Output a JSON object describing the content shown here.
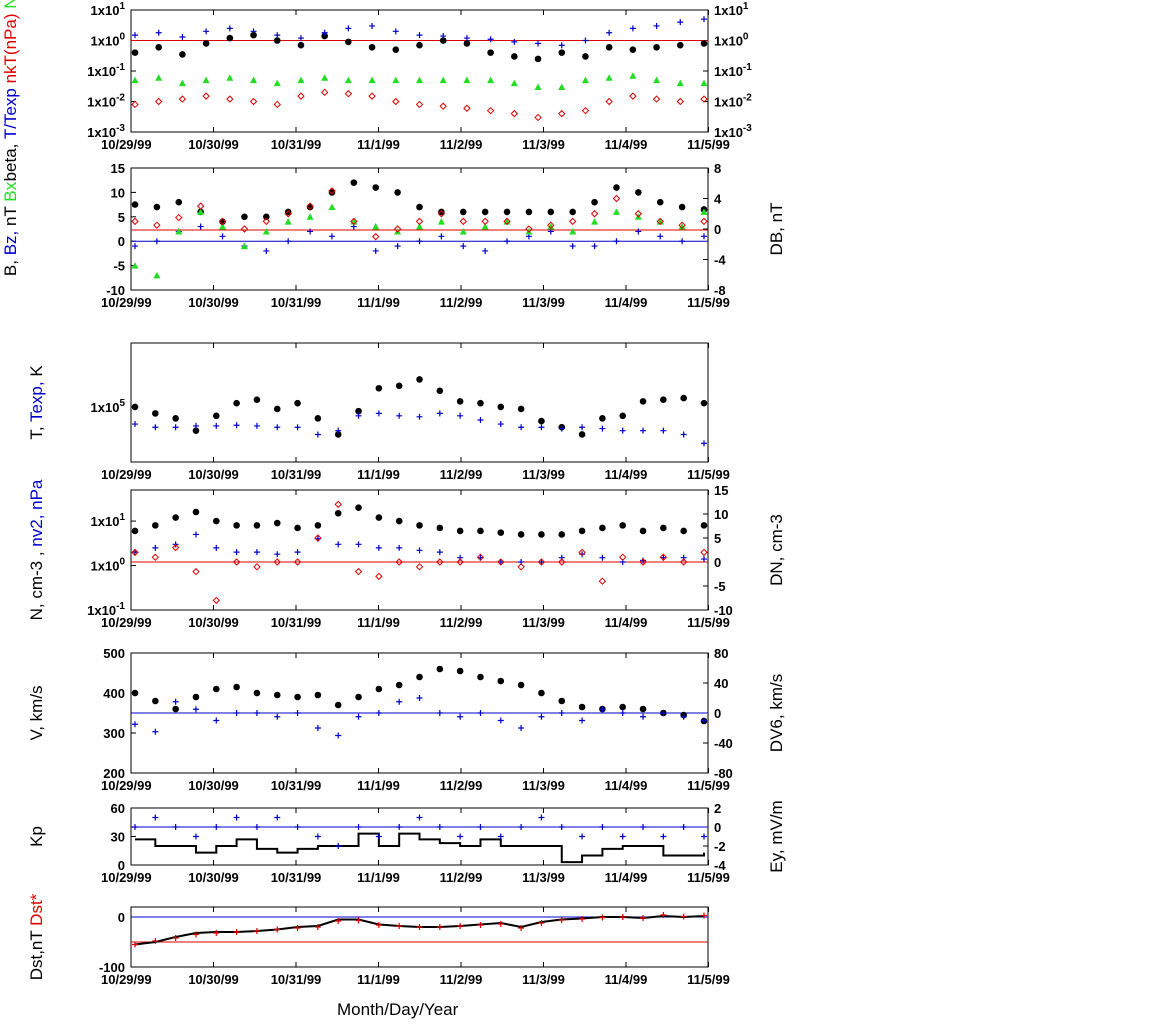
{
  "colors": {
    "black": "#000000",
    "blue": "#0000cc",
    "red": "#dd0000",
    "green": "#22dd22"
  },
  "date_labels": [
    "10/29/99",
    "10/30/99",
    "10/31/99",
    "11/1/99",
    "11/2/99",
    "11/3/99",
    "11/4/99",
    "11/5/99"
  ],
  "x_axis_title": "Month/Day/Year",
  "chart_data": [
    {
      "type": "scatter",
      "panel": "beta-ratio",
      "y_scale": "log",
      "ylim": [
        0.001,
        10
      ],
      "y_ticks": [
        "1x10-3",
        "1x10-2",
        "1x10-1",
        "1x100",
        "1x101"
      ],
      "right_ticks": [
        "1x10-3",
        "1x10-2",
        "1x10-1",
        "1x100",
        "1x101"
      ],
      "ylabel_parts": [
        {
          "text": "beta,",
          "color": "black"
        },
        {
          "text": "T/Texp",
          "color": "blue"
        },
        {
          "text": "nkT(nPa)",
          "color": "red"
        },
        {
          "text": "Na/Np",
          "color": "green"
        }
      ],
      "reference_lines": [
        {
          "value": 1,
          "color": "red"
        }
      ],
      "series": [
        {
          "marker": "dot",
          "color": "black",
          "values": [
            0.4,
            0.6,
            0.35,
            0.8,
            1.2,
            1.5,
            1.0,
            0.7,
            1.4,
            0.9,
            0.6,
            0.5,
            0.7,
            1.0,
            0.8,
            0.4,
            0.3,
            0.25,
            0.4,
            0.3,
            0.6,
            0.5,
            0.6,
            0.7,
            0.8
          ]
        },
        {
          "marker": "plus",
          "color": "blue",
          "values": [
            1.5,
            1.8,
            1.3,
            2.0,
            2.5,
            2.0,
            1.5,
            1.2,
            1.8,
            2.5,
            3.0,
            2.0,
            1.5,
            1.4,
            1.2,
            1.1,
            0.9,
            0.8,
            0.7,
            1.0,
            1.8,
            2.5,
            3.0,
            4.0,
            5.0
          ]
        },
        {
          "marker": "triangle",
          "color": "green",
          "values": [
            0.05,
            0.06,
            0.04,
            0.05,
            0.06,
            0.05,
            0.04,
            0.05,
            0.06,
            0.05,
            0.05,
            0.05,
            0.05,
            0.05,
            0.05,
            0.05,
            0.04,
            0.03,
            0.03,
            0.05,
            0.06,
            0.07,
            0.05,
            0.04,
            0.04
          ]
        },
        {
          "marker": "diamond",
          "color": "red",
          "values": [
            0.008,
            0.01,
            0.012,
            0.015,
            0.012,
            0.01,
            0.008,
            0.015,
            0.02,
            0.018,
            0.015,
            0.01,
            0.008,
            0.007,
            0.006,
            0.005,
            0.004,
            0.003,
            0.004,
            0.005,
            0.01,
            0.015,
            0.012,
            0.01,
            0.012
          ]
        }
      ]
    },
    {
      "type": "scatter",
      "panel": "magnetic-field",
      "ylim": [
        -10,
        15
      ],
      "y_ticks": [
        "-10",
        "-5",
        "0",
        "5",
        "10",
        "15"
      ],
      "y2lim": [
        -8,
        8
      ],
      "right_ticks": [
        "-8",
        "-4",
        "0",
        "4",
        "8"
      ],
      "ylabel_parts": [
        {
          "text": "B,",
          "color": "black"
        },
        {
          "text": "Bz,",
          "color": "blue"
        },
        {
          "text": "nT",
          "color": "black"
        },
        {
          "text": "Bx",
          "color": "green"
        }
      ],
      "right_label": {
        "text": "DB, nT",
        "color": "red"
      },
      "reference_lines": [
        {
          "value": 2.3,
          "color": "red"
        },
        {
          "value": 0,
          "color": "blue"
        }
      ],
      "series": [
        {
          "marker": "dot",
          "color": "black",
          "values": [
            7.5,
            7,
            8,
            6,
            4,
            5,
            5,
            6,
            7,
            10,
            12,
            11,
            10,
            7,
            6,
            6,
            6,
            6,
            6,
            6,
            6,
            8,
            11,
            10,
            8,
            7,
            6.5
          ]
        },
        {
          "marker": "plus",
          "color": "blue",
          "values": [
            -1,
            0,
            2,
            3,
            1,
            -1,
            -2,
            0,
            2,
            1,
            3,
            -2,
            -1,
            0,
            1,
            -1,
            -2,
            0,
            1,
            2,
            -1,
            -1,
            0,
            2,
            1,
            0,
            1
          ]
        },
        {
          "marker": "triangle",
          "color": "green",
          "values": [
            -5,
            -7,
            2,
            6,
            3,
            -1,
            2,
            4,
            5,
            7,
            4,
            3,
            2,
            3,
            4,
            2,
            3,
            4,
            2,
            3,
            2,
            4,
            6,
            5,
            4,
            3,
            6
          ]
        },
        {
          "marker": "diamond",
          "color": "red",
          "values": [
            1,
            0.5,
            1.5,
            3,
            1,
            0,
            1,
            2,
            3,
            5,
            1,
            -1,
            0,
            1,
            2,
            1,
            1,
            1,
            0,
            0.5,
            1,
            2,
            4,
            2,
            1,
            0.5,
            1
          ]
        }
      ]
    },
    {
      "type": "scatter",
      "panel": "temperature",
      "y_scale": "log",
      "ylim": [
        25000,
        500000
      ],
      "y_ticks": [
        "1x105"
      ],
      "ylabel_parts": [
        {
          "text": "T,",
          "color": "black"
        },
        {
          "text": "Texp,",
          "color": "blue"
        },
        {
          "text": "K",
          "color": "black"
        }
      ],
      "series": [
        {
          "marker": "dot",
          "color": "black",
          "values": [
            100000,
            85000,
            75000,
            55000,
            80000,
            110000,
            120000,
            95000,
            110000,
            75000,
            50000,
            90000,
            160000,
            170000,
            200000,
            150000,
            115000,
            110000,
            100000,
            95000,
            70000,
            60000,
            50000,
            75000,
            80000,
            115000,
            120000,
            125000,
            110000
          ]
        },
        {
          "marker": "plus",
          "color": "blue",
          "values": [
            65000,
            60000,
            60000,
            62000,
            62000,
            63000,
            62000,
            60000,
            60000,
            50000,
            55000,
            80000,
            85000,
            80000,
            78000,
            85000,
            80000,
            72000,
            65000,
            60000,
            60000,
            58000,
            60000,
            58000,
            55000,
            55000,
            55000,
            50000,
            40000
          ]
        }
      ]
    },
    {
      "type": "scatter",
      "panel": "density",
      "y_scale": "log",
      "ylim": [
        0.1,
        50
      ],
      "y_ticks": [
        "1x10-1",
        "1x100",
        "1x101"
      ],
      "y2lim": [
        -10,
        15
      ],
      "right_ticks": [
        "-10",
        "-5",
        "0",
        "5",
        "10",
        "15"
      ],
      "ylabel_parts": [
        {
          "text": "N, cm-3 ,",
          "color": "black"
        },
        {
          "text": "nv2, nPa",
          "color": "blue"
        }
      ],
      "right_label": {
        "text": "DN, cm-3",
        "color": "red"
      },
      "reference_lines": [
        {
          "value": 0,
          "color": "red",
          "axis": "y2"
        }
      ],
      "series": [
        {
          "marker": "dot",
          "color": "black",
          "values": [
            6,
            8,
            12,
            16,
            10,
            8,
            8,
            9,
            7,
            8,
            15,
            20,
            12,
            10,
            8,
            7,
            6,
            6,
            5.5,
            5,
            5,
            5,
            6,
            7,
            8,
            6,
            7,
            6,
            8
          ]
        },
        {
          "marker": "plus",
          "color": "blue",
          "values": [
            2,
            2.5,
            3,
            5,
            2.5,
            2,
            2,
            1.8,
            2,
            4,
            3,
            3,
            2.5,
            2.5,
            2.2,
            2,
            1.5,
            1.5,
            1.2,
            1.2,
            1.2,
            1.5,
            1.8,
            1.5,
            1.2,
            1.3,
            1.5,
            1.5,
            1.4
          ]
        },
        {
          "marker": "diamond",
          "color": "red",
          "values": [
            2,
            1,
            3,
            -2,
            -8,
            0,
            -1,
            0,
            0,
            5,
            12,
            -2,
            -3,
            0,
            -1,
            0,
            0,
            1,
            0,
            -1,
            0,
            0,
            2,
            -4,
            1,
            0,
            1,
            0,
            2
          ]
        }
      ]
    },
    {
      "type": "scatter",
      "panel": "velocity",
      "ylim": [
        200,
        500
      ],
      "y_ticks": [
        "200",
        "300",
        "400",
        "500"
      ],
      "y2lim": [
        -80,
        80
      ],
      "right_ticks": [
        "-80",
        "-40",
        "0",
        "40",
        "80"
      ],
      "ylabel_parts": [
        {
          "text": "V, km/s",
          "color": "black"
        }
      ],
      "right_label": {
        "text": "DV6, km/s",
        "color": "blue"
      },
      "reference_lines": [
        {
          "value": 0,
          "color": "blue",
          "axis": "y2"
        }
      ],
      "series": [
        {
          "marker": "dot",
          "color": "black",
          "values": [
            400,
            380,
            360,
            390,
            410,
            415,
            400,
            395,
            390,
            395,
            370,
            390,
            410,
            420,
            440,
            460,
            455,
            440,
            430,
            420,
            400,
            380,
            365,
            360,
            365,
            360,
            350,
            345,
            330
          ]
        },
        {
          "marker": "plus",
          "color": "blue",
          "values": [
            -15,
            -25,
            15,
            5,
            -10,
            0,
            0,
            -5,
            0,
            -20,
            -30,
            -5,
            0,
            15,
            20,
            0,
            -5,
            0,
            -10,
            -20,
            -5,
            0,
            -10,
            5,
            0,
            -5,
            0,
            -5,
            -10
          ]
        }
      ]
    },
    {
      "type": "line",
      "panel": "kp",
      "ylim": [
        0,
        60
      ],
      "y_ticks": [
        "0",
        "30",
        "60"
      ],
      "y2lim": [
        -4,
        2
      ],
      "right_ticks": [
        "-4",
        "-2",
        "0",
        "2"
      ],
      "ylabel_parts": [
        {
          "text": "Kp",
          "color": "black"
        }
      ],
      "right_label": {
        "text": "Ey,  mV/m",
        "color": "blue"
      },
      "reference_lines": [
        {
          "value": 0,
          "color": "blue",
          "axis": "y2"
        }
      ],
      "series": [
        {
          "name": "",
          "marker": "line",
          "color": "black",
          "values": [
            27,
            20,
            20,
            13,
            20,
            27,
            17,
            13,
            17,
            20,
            20,
            33,
            20,
            33,
            27,
            23,
            20,
            27,
            20,
            20,
            20,
            3,
            10,
            17,
            20,
            20,
            10,
            10,
            13
          ]
        },
        {
          "name": "",
          "marker": "plus",
          "color": "blue",
          "values": [
            0,
            1,
            0,
            -1,
            0,
            1,
            0,
            1,
            0,
            -1,
            -2,
            0,
            -1,
            0,
            1,
            0,
            -1,
            0,
            -1,
            0,
            1,
            0,
            -1,
            0,
            -1,
            0,
            -1,
            0,
            -1
          ]
        }
      ]
    },
    {
      "type": "line",
      "panel": "dst",
      "ylim": [
        -100,
        20
      ],
      "y_ticks": [
        "-100",
        "0"
      ],
      "ylabel_parts": [
        {
          "text": "Dst,nT",
          "color": "black"
        },
        {
          "text": "Dst*",
          "color": "red"
        }
      ],
      "reference_lines": [
        {
          "value": 0,
          "color": "blue"
        },
        {
          "value": -50,
          "color": "red"
        }
      ],
      "series": [
        {
          "name": "",
          "marker": "line",
          "color": "black",
          "values": [
            -55,
            -50,
            -40,
            -32,
            -30,
            -30,
            -28,
            -25,
            -20,
            -18,
            -5,
            -5,
            -15,
            -18,
            -20,
            -20,
            -18,
            -15,
            -12,
            -20,
            -10,
            -5,
            -3,
            0,
            0,
            -2,
            2,
            0,
            2
          ]
        },
        {
          "name": "",
          "marker": "plus",
          "color": "red",
          "values": [
            -55,
            -48,
            -42,
            -35,
            -32,
            -30,
            -28,
            -25,
            -22,
            -20,
            -8,
            -7,
            -16,
            -18,
            -20,
            -20,
            -18,
            -16,
            -14,
            -22,
            -12,
            -6,
            -4,
            -1,
            0,
            -2,
            4,
            1,
            3
          ]
        }
      ]
    }
  ]
}
